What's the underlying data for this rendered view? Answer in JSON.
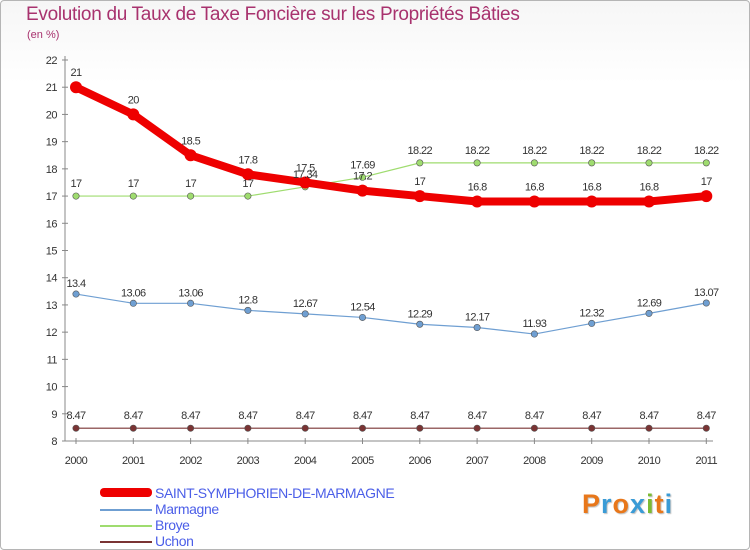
{
  "header": {
    "title": "Evolution du Taux de Taxe Foncière sur les Propriétés Bâties",
    "subtitle": "(en %)"
  },
  "brand": {
    "letters": [
      "P",
      "r",
      "o",
      "x",
      "i",
      "t",
      "i"
    ],
    "colors": [
      "#e8771a",
      "#3a9bd6",
      "#e8771a",
      "#3a9bd6",
      "#7cbb33",
      "#e8771a",
      "#3a9bd6"
    ]
  },
  "chart_data": {
    "type": "line",
    "title": "Evolution du Taux de Taxe Foncière sur les Propriétés Bâties",
    "ylabel": "(en %)",
    "xlabel": "",
    "x": [
      "2000",
      "2001",
      "2002",
      "2003",
      "2004",
      "2005",
      "2006",
      "2007",
      "2008",
      "2009",
      "2010",
      "2011"
    ],
    "ylim": [
      8,
      22
    ],
    "yticks": [
      "8",
      "9",
      "10",
      "11",
      "12",
      "13",
      "14",
      "15",
      "16",
      "17",
      "18",
      "19",
      "20",
      "21",
      "22"
    ],
    "grid": false,
    "legend_position": "bottom-left",
    "series": [
      {
        "name": "SAINT-SYMPHORIEN-DE-MARMAGNE",
        "color": "#ee0000",
        "values": [
          21,
          20,
          18.5,
          17.8,
          17.5,
          17.2,
          17,
          16.8,
          16.8,
          16.8,
          16.8,
          17
        ],
        "labels": [
          "21",
          "20",
          "18.5",
          "17.8",
          "17.5",
          "17.2",
          "17",
          "16.8",
          "16.8",
          "16.8",
          "16.8",
          "17"
        ]
      },
      {
        "name": "Marmagne",
        "color": "#6f9fd2",
        "values": [
          13.4,
          13.06,
          13.06,
          12.8,
          12.67,
          12.54,
          12.29,
          12.17,
          11.93,
          12.32,
          12.69,
          13.07
        ],
        "labels": [
          "13.4",
          "13.06",
          "13.06",
          "12.8",
          "12.67",
          "12.54",
          "12.29",
          "12.17",
          "11.93",
          "12.32",
          "12.69",
          "13.07"
        ]
      },
      {
        "name": "Broye",
        "color": "#9fdc6f",
        "values": [
          17,
          17,
          17,
          17,
          17.34,
          17.69,
          18.22,
          18.22,
          18.22,
          18.22,
          18.22,
          18.22
        ],
        "labels": [
          "17",
          "17",
          "17",
          "17",
          "17.34",
          "17.69",
          "18.22",
          "18.22",
          "18.22",
          "18.22",
          "18.22",
          "18.22"
        ]
      },
      {
        "name": "Uchon",
        "color": "#7a3434",
        "values": [
          8.47,
          8.47,
          8.47,
          8.47,
          8.47,
          8.47,
          8.47,
          8.47,
          8.47,
          8.47,
          8.47,
          8.47
        ],
        "labels": [
          "8.47",
          "8.47",
          "8.47",
          "8.47",
          "8.47",
          "8.47",
          "8.47",
          "8.47",
          "8.47",
          "8.47",
          "8.47",
          "8.47"
        ]
      }
    ]
  }
}
